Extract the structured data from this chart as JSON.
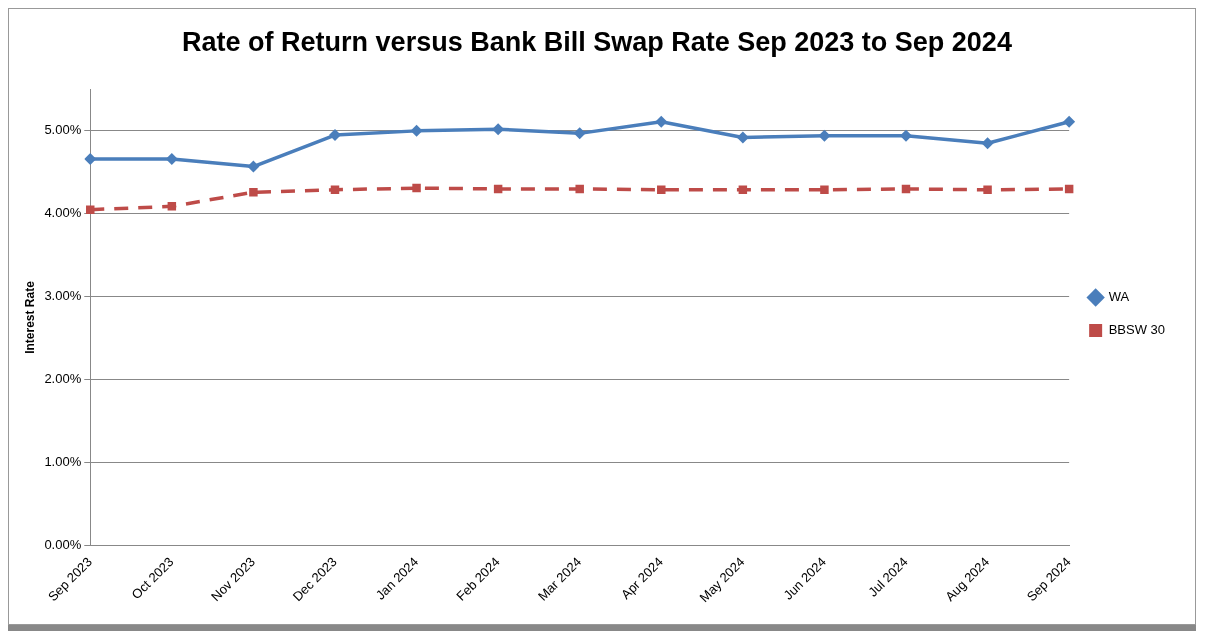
{
  "chart_data": {
    "type": "line",
    "title": "Rate of Return versus Bank Bill Swap Rate Sep 2023 to Sep 2024",
    "ylabel": "Interest Rate",
    "categories": [
      "Sep 2023",
      "Oct 2023",
      "Nov 2023",
      "Dec 2023",
      "Jan 2024",
      "Feb 2024",
      "Mar 2024",
      "Apr 2024",
      "May 2024",
      "Jun 2024",
      "Jul 2024",
      "Aug 2024",
      "Sep 2024"
    ],
    "series": [
      {
        "name": "WA",
        "color": "#4a7ebb",
        "marker": "diamond",
        "line_style": "solid",
        "values": [
          4.66,
          4.66,
          4.57,
          4.95,
          5.0,
          5.02,
          4.97,
          5.11,
          4.92,
          4.94,
          4.94,
          4.85,
          5.11
        ]
      },
      {
        "name": "BBSW 30",
        "color": "#be4b48",
        "marker": "square",
        "line_style": "dashed",
        "values": [
          4.05,
          4.09,
          4.26,
          4.29,
          4.31,
          4.3,
          4.3,
          4.29,
          4.29,
          4.29,
          4.3,
          4.29,
          4.3
        ]
      }
    ],
    "ylim": [
      0,
      5.5
    ],
    "yticks": [
      {
        "value": 0,
        "label": "0.00%"
      },
      {
        "value": 1,
        "label": "1.00%"
      },
      {
        "value": 2,
        "label": "2.00%"
      },
      {
        "value": 3,
        "label": "3.00%"
      },
      {
        "value": 4,
        "label": "4.00%"
      },
      {
        "value": 5,
        "label": "5.00%"
      }
    ],
    "grid": "y",
    "legend": "right"
  }
}
